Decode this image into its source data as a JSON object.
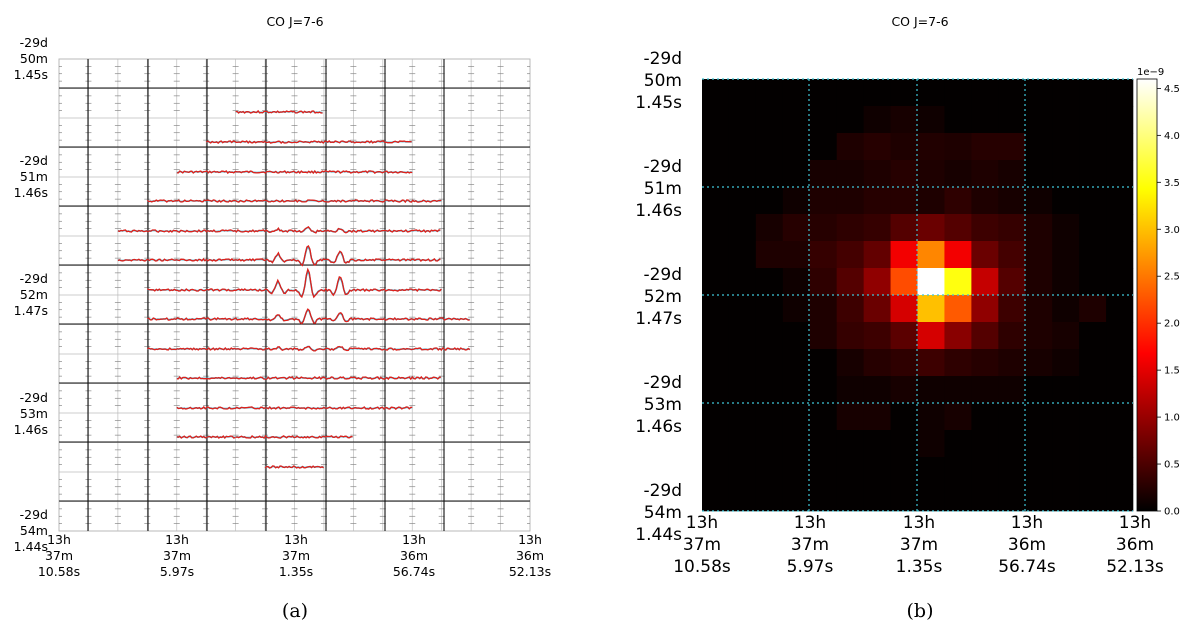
{
  "panels": [
    {
      "caption": "(a)",
      "title": "CO J=7-6",
      "ra_ticks": [
        [
          "13h",
          "37m",
          "10.58s"
        ],
        [
          "13h",
          "37m",
          "5.97s"
        ],
        [
          "13h",
          "37m",
          "1.35s"
        ],
        [
          "13h",
          "36m",
          "56.74s"
        ],
        [
          "13h",
          "36m",
          "52.13s"
        ]
      ],
      "dec_ticks": [
        [
          "-29d",
          "50m",
          "1.45s"
        ],
        [
          "-29d",
          "51m",
          "1.46s"
        ],
        [
          "-29d",
          "52m",
          "1.47s"
        ],
        [
          "-29d",
          "53m",
          "1.46s"
        ],
        [
          "-29d",
          "54m",
          "1.44s"
        ]
      ]
    },
    {
      "caption": "(b)",
      "title": "CO J=7-6",
      "ra_ticks": [
        [
          "13h",
          "37m",
          "10.58s"
        ],
        [
          "13h",
          "37m",
          "5.97s"
        ],
        [
          "13h",
          "37m",
          "1.35s"
        ],
        [
          "13h",
          "36m",
          "56.74s"
        ],
        [
          "13h",
          "36m",
          "52.13s"
        ]
      ],
      "dec_ticks": [
        [
          "-29d",
          "50m",
          "1.45s"
        ],
        [
          "-29d",
          "51m",
          "1.46s"
        ],
        [
          "-29d",
          "52m",
          "1.47s"
        ],
        [
          "-29d",
          "53m",
          "1.46s"
        ],
        [
          "-29d",
          "54m",
          "1.44s"
        ]
      ],
      "colorbar": {
        "exponent_label": "1e−9",
        "ticks": [
          "0.0",
          "0.5",
          "1.0",
          "1.5",
          "2.0",
          "2.5",
          "3.0",
          "3.5",
          "4.0",
          "4.5"
        ],
        "colormap": "hot",
        "colors": [
          "#000000",
          "#ff0000",
          "#ffff00",
          "#ffffff"
        ]
      }
    }
  ],
  "chart_data": [
    {
      "type": "spectral_grid",
      "title": "CO J=7-6",
      "xlabel": "",
      "ylabel": "",
      "grid": "on",
      "ra_tick_labels": [
        "13h 37m 10.58s",
        "13h 37m 5.97s",
        "13h 37m 1.35s",
        "13h 36m 56.74s",
        "13h 36m 52.13s"
      ],
      "dec_tick_labels": [
        "-29d 50m 1.45s",
        "-29d 51m 1.46s",
        "-29d 52m 1.47s",
        "-29d 53m 1.46s",
        "-29d 54m 1.44s"
      ],
      "n_columns": 16,
      "n_rows": 14,
      "spectra_rows": [
        {
          "row": 1,
          "col_start": 6,
          "col_end": 8,
          "peak": 0
        },
        {
          "row": 2,
          "col_start": 5,
          "col_end": 11,
          "peak": 0
        },
        {
          "row": 3,
          "col_start": 4,
          "col_end": 11,
          "peak": 0
        },
        {
          "row": 4,
          "col_start": 3,
          "col_end": 12,
          "peak": 0
        },
        {
          "row": 5,
          "col_start": 2,
          "col_end": 12,
          "peak": 0.2
        },
        {
          "row": 6,
          "col_start": 2,
          "col_end": 12,
          "peak": 0.7
        },
        {
          "row": 7,
          "col_start": 3,
          "col_end": 12,
          "peak": 1.0
        },
        {
          "row": 8,
          "col_start": 3,
          "col_end": 13,
          "peak": 0.5
        },
        {
          "row": 9,
          "col_start": 3,
          "col_end": 13,
          "peak": 0.15
        },
        {
          "row": 10,
          "col_start": 4,
          "col_end": 12,
          "peak": 0
        },
        {
          "row": 11,
          "col_start": 4,
          "col_end": 11,
          "peak": 0
        },
        {
          "row": 12,
          "col_start": 4,
          "col_end": 5,
          "peak": 0
        },
        {
          "row": 12,
          "col_start": 6,
          "col_end": 9,
          "peak": 0
        },
        {
          "row": 13,
          "col_start": 7,
          "col_end": 8,
          "peak": 0
        }
      ]
    },
    {
      "type": "heatmap",
      "title": "CO J=7-6",
      "xlabel": "",
      "ylabel": "",
      "grid": "on",
      "colormap": "hot",
      "value_range": [
        0,
        4.6
      ],
      "value_scale_label": "1e-9",
      "ra_tick_labels": [
        "13h 37m 10.58s",
        "13h 37m 5.97s",
        "13h 37m 1.35s",
        "13h 36m 56.74s",
        "13h 36m 52.13s"
      ],
      "dec_tick_labels": [
        "-29d 50m 1.45s",
        "-29d 51m 1.46s",
        "-29d 52m 1.47s",
        "-29d 53m 1.46s",
        "-29d 54m 1.44s"
      ],
      "values": [
        [
          0.02,
          0.02,
          0.02,
          0.02,
          0.02,
          0.02,
          0.02,
          0.02,
          0.02,
          0.02,
          0.02,
          0.02,
          0.02,
          0.02,
          0.02,
          0.02
        ],
        [
          0.02,
          0.02,
          0.02,
          0.02,
          0.02,
          0.02,
          0.1,
          0.15,
          0.1,
          0.02,
          0.02,
          0.02,
          0.02,
          0.02,
          0.02,
          0.02
        ],
        [
          0.02,
          0.02,
          0.02,
          0.02,
          0.02,
          0.2,
          0.25,
          0.2,
          0.22,
          0.2,
          0.25,
          0.25,
          0.02,
          0.02,
          0.02,
          0.02
        ],
        [
          0.02,
          0.02,
          0.02,
          0.02,
          0.15,
          0.15,
          0.2,
          0.25,
          0.2,
          0.15,
          0.2,
          0.15,
          0.02,
          0.02,
          0.02,
          0.02
        ],
        [
          0.02,
          0.02,
          0.02,
          0.1,
          0.2,
          0.2,
          0.25,
          0.25,
          0.2,
          0.3,
          0.2,
          0.15,
          0.1,
          0.02,
          0.02,
          0.02
        ],
        [
          0.02,
          0.02,
          0.15,
          0.25,
          0.25,
          0.3,
          0.35,
          0.55,
          0.7,
          0.55,
          0.4,
          0.35,
          0.2,
          0.1,
          0.02,
          0.02
        ],
        [
          0.02,
          0.02,
          0.2,
          0.2,
          0.35,
          0.45,
          0.65,
          1.6,
          2.6,
          1.6,
          0.7,
          0.45,
          0.2,
          0.1,
          0.02,
          0.02
        ],
        [
          0.02,
          0.02,
          0.02,
          0.1,
          0.3,
          0.55,
          0.95,
          2.2,
          4.6,
          3.5,
          1.3,
          0.55,
          0.2,
          0.1,
          0.02,
          0.02
        ],
        [
          0.02,
          0.02,
          0.02,
          0.1,
          0.2,
          0.4,
          0.7,
          1.4,
          3.0,
          2.3,
          0.95,
          0.4,
          0.2,
          0.1,
          0.2,
          0.02
        ],
        [
          0.02,
          0.02,
          0.02,
          0.02,
          0.2,
          0.35,
          0.4,
          0.6,
          1.4,
          0.9,
          0.55,
          0.3,
          0.2,
          0.15,
          0.02,
          0.02
        ],
        [
          0.02,
          0.02,
          0.02,
          0.02,
          0.02,
          0.15,
          0.25,
          0.3,
          0.4,
          0.3,
          0.25,
          0.2,
          0.15,
          0.1,
          0.02,
          0.02
        ],
        [
          0.02,
          0.02,
          0.02,
          0.02,
          0.02,
          0.1,
          0.1,
          0.15,
          0.1,
          0.1,
          0.1,
          0.1,
          0.02,
          0.02,
          0.02,
          0.02
        ],
        [
          0.02,
          0.02,
          0.02,
          0.02,
          0.02,
          0.15,
          0.15,
          0.02,
          0.1,
          0.15,
          0.02,
          0.02,
          0.02,
          0.02,
          0.02,
          0.02
        ],
        [
          0.02,
          0.02,
          0.02,
          0.02,
          0.02,
          0.02,
          0.02,
          0.02,
          0.1,
          0.02,
          0.02,
          0.02,
          0.02,
          0.02,
          0.02,
          0.02
        ],
        [
          0.02,
          0.02,
          0.02,
          0.02,
          0.02,
          0.02,
          0.02,
          0.02,
          0.02,
          0.02,
          0.02,
          0.02,
          0.02,
          0.02,
          0.02,
          0.02
        ],
        [
          0.02,
          0.02,
          0.02,
          0.02,
          0.02,
          0.02,
          0.02,
          0.02,
          0.02,
          0.02,
          0.02,
          0.02,
          0.02,
          0.02,
          0.02,
          0.02
        ]
      ]
    }
  ]
}
